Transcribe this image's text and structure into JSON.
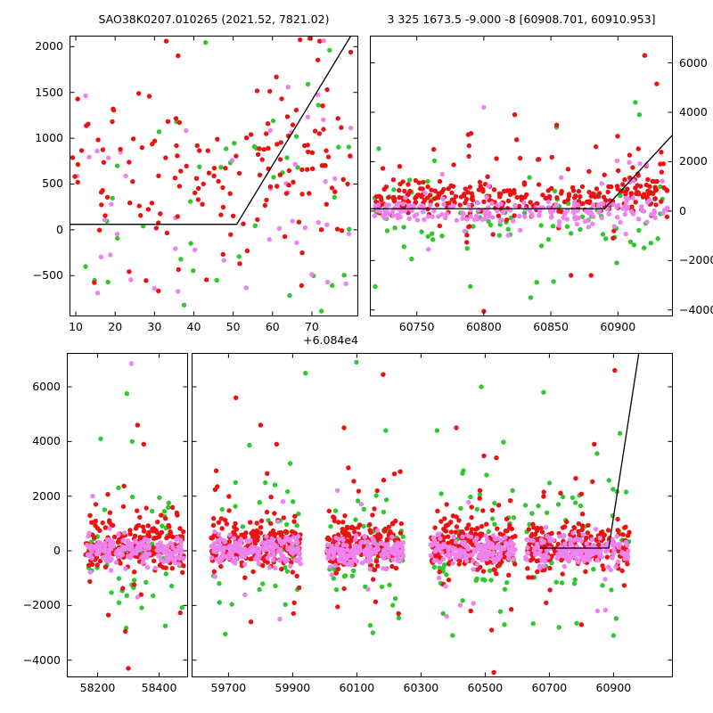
{
  "titles": {
    "left": "SAO38K0207.010265 (2021.52, 7821.02)",
    "right": "3 325 1673.5 -9.000 -8 [60908.701, 60910.953]"
  },
  "colors": {
    "red": "#ee1111",
    "green": "#2fc92f",
    "violet": "#ee82ee",
    "line": "#000000",
    "axis": "#000000",
    "background": "#ffffff"
  },
  "marker": {
    "radius": 2.7
  },
  "chart_data": [
    {
      "id": "ax1",
      "type": "scatter",
      "title": "SAO38K0207.010265 (2021.52, 7821.02)",
      "xlim": [
        8.4,
        81.8
      ],
      "ylim": [
        -945,
        2120
      ],
      "x_offset": "+6.084e4",
      "xticks": {
        "values": [
          10,
          20,
          30,
          40,
          50,
          60,
          70
        ],
        "labels": [
          "10",
          "20",
          "30",
          "40",
          "50",
          "60",
          "70"
        ]
      },
      "yticks": {
        "side": "left",
        "values": [
          -500,
          0,
          500,
          1000,
          1500,
          2000
        ],
        "labels": [
          "−500",
          "0",
          "500",
          "1000",
          "1500",
          "2000"
        ]
      },
      "line": [
        [
          8.4,
          60
        ],
        [
          50.9,
          60
        ],
        [
          81.8,
          2251
        ]
      ],
      "clusters": [
        {
          "seed": 11,
          "color": "green",
          "n": 34,
          "x": [
            9,
            81
          ],
          "mean": 150,
          "sd": 800,
          "clip": [
            -900,
            2060
          ]
        },
        {
          "seed": 12,
          "color": "green",
          "n": 8,
          "x": [
            60,
            81
          ],
          "mean": 900,
          "sd": 600,
          "clip": [
            -100,
            1900
          ]
        },
        {
          "seed": 13,
          "color": "violet",
          "n": 34,
          "x": [
            9,
            81
          ],
          "mean": 50,
          "sd": 550,
          "clip": [
            -900,
            1700
          ]
        },
        {
          "seed": 14,
          "color": "violet",
          "n": 14,
          "x": [
            58,
            81
          ],
          "mean": 700,
          "sd": 520,
          "clip": [
            -200,
            1800
          ]
        },
        {
          "seed": 15,
          "color": "red",
          "n": 95,
          "x": [
            9,
            81
          ],
          "mean": 680,
          "sd": 380,
          "clip": [
            -100,
            2080
          ]
        },
        {
          "seed": 16,
          "color": "red",
          "n": 42,
          "x": [
            9,
            78
          ],
          "mean": 50,
          "sd": 520,
          "clip": [
            -900,
            2080
          ]
        },
        {
          "seed": 17,
          "color": "red",
          "n": 14,
          "x": [
            55,
            81
          ],
          "mean": 1450,
          "sd": 420,
          "clip": [
            400,
            2080
          ]
        }
      ],
      "outliers": [
        [
          "red",
          67,
          2075
        ],
        [
          "red",
          69.5,
          2090
        ],
        [
          "red",
          72,
          2060
        ],
        [
          "violet",
          73,
          2065
        ],
        [
          "green",
          74.5,
          1960
        ],
        [
          "green",
          43,
          2045
        ],
        [
          "red",
          33,
          2060
        ],
        [
          "red",
          36,
          1900
        ]
      ]
    },
    {
      "id": "ax2",
      "type": "scatter",
      "title": "3 325 1673.5 -9.000 -8 [60908.701, 60910.953]",
      "xlim": [
        60715,
        60941
      ],
      "ylim": [
        -4260,
        7100
      ],
      "xticks": {
        "values": [
          60750,
          60800,
          60850,
          60900
        ],
        "labels": [
          "60750",
          "60800",
          "60850",
          "60900"
        ]
      },
      "yticks": {
        "side": "right",
        "values": [
          -4000,
          -2000,
          0,
          2000,
          4000,
          6000
        ],
        "labels": [
          "−4000",
          "−2000",
          "0",
          "2000",
          "4000",
          "6000"
        ]
      },
      "line": [
        [
          60715,
          100
        ],
        [
          60890,
          100
        ],
        [
          60941,
          3100
        ]
      ],
      "clusters": [
        {
          "seed": 21,
          "color": "green",
          "n": 65,
          "x": [
            60718,
            60938
          ],
          "mean": -150,
          "sd": 800,
          "clip": [
            -2400,
            2000
          ]
        },
        {
          "seed": 22,
          "color": "green",
          "n": 18,
          "x": [
            60718,
            60938
          ],
          "mean": 0,
          "sd": 1800,
          "clip": [
            -3600,
            3700
          ]
        },
        {
          "seed": 23,
          "color": "red",
          "n": 240,
          "x": [
            60718,
            60938
          ],
          "mean": 520,
          "sd": 330,
          "clip": [
            -350,
            1600
          ]
        },
        {
          "seed": 24,
          "color": "red",
          "n": 45,
          "x": [
            60718,
            60938
          ],
          "mean": 800,
          "sd": 1200,
          "clip": [
            -1500,
            3900
          ]
        },
        {
          "seed": 25,
          "color": "red",
          "n": 11,
          "x": [
            60786,
            60791
          ],
          "dist": "uniform",
          "clip": [
            -1500,
            3500
          ]
        },
        {
          "seed": 26,
          "color": "violet",
          "n": 185,
          "x": [
            60718,
            60938
          ],
          "mean": -30,
          "sd": 260,
          "clip": [
            -800,
            800
          ]
        },
        {
          "seed": 27,
          "color": "violet",
          "n": 12,
          "x": [
            60718,
            60930
          ],
          "mean": 0,
          "sd": 1100,
          "clip": [
            -2600,
            2600
          ]
        },
        {
          "seed": 28,
          "color": "red",
          "n": 16,
          "x": [
            60898,
            60938
          ],
          "mean": 1500,
          "sd": 900,
          "clip": [
            0,
            3300
          ]
        },
        {
          "seed": 29,
          "color": "violet",
          "n": 10,
          "x": [
            60898,
            60936
          ],
          "mean": 1200,
          "sd": 900,
          "clip": [
            -200,
            2600
          ]
        }
      ],
      "outliers": [
        [
          "violet",
          60800,
          4200
        ],
        [
          "red",
          60823,
          3900
        ],
        [
          "red",
          60920,
          6300
        ],
        [
          "red",
          60929,
          5150
        ],
        [
          "green",
          60913,
          4400
        ],
        [
          "green",
          60916,
          3900
        ],
        [
          "green",
          60835,
          -3500
        ],
        [
          "red",
          60800,
          -4050
        ],
        [
          "green",
          60852,
          -2850
        ],
        [
          "red",
          60865,
          -2600
        ],
        [
          "red",
          60880,
          -2600
        ],
        [
          "green",
          60790,
          -3050
        ]
      ]
    },
    {
      "id": "ax3a",
      "type": "scatter",
      "xlim": [
        58100,
        58494
      ],
      "ylim": [
        -4630,
        7240
      ],
      "xticks": {
        "values": [
          58200,
          58400
        ],
        "labels": [
          "58200",
          "58400"
        ]
      },
      "yticks": {
        "side": "left",
        "values": [
          -4000,
          -2000,
          0,
          2000,
          4000,
          6000
        ],
        "labels": [
          "−4000",
          "−2000",
          "0",
          "2000",
          "4000",
          "6000"
        ]
      },
      "clusters": [
        {
          "seed": 31,
          "color": "green",
          "n": 52,
          "x": [
            58165,
            58480
          ],
          "mean": 250,
          "sd": 1300,
          "clip": [
            -3100,
            4700
          ]
        },
        {
          "seed": 32,
          "color": "red",
          "n": 185,
          "x": [
            58160,
            58480
          ],
          "mean": 180,
          "sd": 420,
          "clip": [
            -1100,
            1500
          ]
        },
        {
          "seed": 33,
          "color": "red",
          "n": 30,
          "x": [
            58170,
            58470
          ],
          "mean": 600,
          "sd": 1300,
          "clip": [
            -2700,
            3300
          ]
        },
        {
          "seed": 34,
          "color": "violet",
          "n": 165,
          "x": [
            58165,
            58480
          ],
          "mean": 0,
          "sd": 270,
          "clip": [
            -850,
            950
          ]
        },
        {
          "seed": 35,
          "color": "violet",
          "n": 8,
          "x": [
            58180,
            58460
          ],
          "mean": 0,
          "sd": 1300,
          "clip": [
            -2700,
            2700
          ]
        }
      ],
      "outliers": [
        [
          "violet",
          58310,
          6850
        ],
        [
          "green",
          58295,
          5750
        ],
        [
          "red",
          58330,
          4600
        ],
        [
          "red",
          58350,
          3900
        ],
        [
          "red",
          58235,
          -2350
        ],
        [
          "red",
          58290,
          -2950
        ],
        [
          "green",
          58420,
          -2750
        ],
        [
          "red",
          58300,
          -4300
        ],
        [
          "violet",
          58330,
          -1700
        ],
        [
          "green",
          58210,
          4100
        ]
      ]
    },
    {
      "id": "ax3b",
      "type": "scatter",
      "xlim": [
        59585,
        61085
      ],
      "ylim": [
        -4630,
        7240
      ],
      "xticks": {
        "values": [
          59700,
          59900,
          60100,
          60300,
          60500,
          60700,
          60900
        ],
        "labels": [
          "59700",
          "59900",
          "60100",
          "60300",
          "60500",
          "60700",
          "60900"
        ]
      },
      "yticks": {
        "side": "none",
        "values": [
          -4000,
          -2000,
          0,
          2000,
          4000,
          6000
        ],
        "labels": [
          "",
          "",
          "",
          "",
          "",
          ""
        ]
      },
      "line": [
        [
          60670,
          100
        ],
        [
          60885,
          100
        ],
        [
          60985,
          7700
        ]
      ],
      "clusters": [
        {
          "seed": 41,
          "color": "green",
          "n": 50,
          "x": [
            59645,
            59925
          ],
          "mean": 250,
          "sd": 1300,
          "clip": [
            -3100,
            4200
          ]
        },
        {
          "seed": 42,
          "color": "red",
          "n": 185,
          "x": [
            59645,
            59925
          ],
          "mean": 200,
          "sd": 420,
          "clip": [
            -1100,
            1600
          ]
        },
        {
          "seed": 43,
          "color": "red",
          "n": 28,
          "x": [
            59650,
            59920
          ],
          "mean": 700,
          "sd": 1300,
          "clip": [
            -2700,
            3600
          ]
        },
        {
          "seed": 44,
          "color": "violet",
          "n": 165,
          "x": [
            59645,
            59925
          ],
          "mean": 0,
          "sd": 270,
          "clip": [
            -850,
            950
          ]
        },
        {
          "seed": 45,
          "color": "violet",
          "n": 7,
          "x": [
            59650,
            59920
          ],
          "mean": 0,
          "sd": 1300,
          "clip": [
            -2600,
            2600
          ]
        },
        {
          "seed": 46,
          "color": "green",
          "n": 50,
          "x": [
            60005,
            60245
          ],
          "mean": 250,
          "sd": 1300,
          "clip": [
            -3100,
            4200
          ]
        },
        {
          "seed": 47,
          "color": "red",
          "n": 185,
          "x": [
            60005,
            60245
          ],
          "mean": 200,
          "sd": 420,
          "clip": [
            -1100,
            1600
          ]
        },
        {
          "seed": 48,
          "color": "red",
          "n": 28,
          "x": [
            60010,
            60240
          ],
          "mean": 700,
          "sd": 1300,
          "clip": [
            -2700,
            3600
          ]
        },
        {
          "seed": 49,
          "color": "violet",
          "n": 165,
          "x": [
            60005,
            60245
          ],
          "mean": 0,
          "sd": 270,
          "clip": [
            -850,
            950
          ]
        },
        {
          "seed": 50,
          "color": "violet",
          "n": 7,
          "x": [
            60010,
            60240
          ],
          "mean": 0,
          "sd": 1300,
          "clip": [
            -2600,
            2600
          ]
        },
        {
          "seed": 51,
          "color": "green",
          "n": 50,
          "x": [
            60330,
            60595
          ],
          "mean": 250,
          "sd": 1300,
          "clip": [
            -3100,
            4200
          ]
        },
        {
          "seed": 52,
          "color": "red",
          "n": 185,
          "x": [
            60330,
            60595
          ],
          "mean": 200,
          "sd": 420,
          "clip": [
            -1100,
            1600
          ]
        },
        {
          "seed": 53,
          "color": "red",
          "n": 28,
          "x": [
            60335,
            60590
          ],
          "mean": 700,
          "sd": 1300,
          "clip": [
            -2700,
            3600
          ]
        },
        {
          "seed": 54,
          "color": "violet",
          "n": 165,
          "x": [
            60330,
            60595
          ],
          "mean": 0,
          "sd": 270,
          "clip": [
            -850,
            950
          ]
        },
        {
          "seed": 55,
          "color": "violet",
          "n": 7,
          "x": [
            60335,
            60590
          ],
          "mean": 0,
          "sd": 1300,
          "clip": [
            -2600,
            2600
          ]
        },
        {
          "seed": 56,
          "color": "green",
          "n": 50,
          "x": [
            60625,
            60950
          ],
          "mean": 250,
          "sd": 1300,
          "clip": [
            -3100,
            4200
          ]
        },
        {
          "seed": 57,
          "color": "red",
          "n": 185,
          "x": [
            60625,
            60950
          ],
          "mean": 200,
          "sd": 420,
          "clip": [
            -1100,
            1600
          ]
        },
        {
          "seed": 58,
          "color": "red",
          "n": 28,
          "x": [
            60630,
            60945
          ],
          "mean": 700,
          "sd": 1300,
          "clip": [
            -2700,
            3600
          ]
        },
        {
          "seed": 59,
          "color": "violet",
          "n": 165,
          "x": [
            60625,
            60950
          ],
          "mean": 0,
          "sd": 270,
          "clip": [
            -850,
            950
          ]
        },
        {
          "seed": 60,
          "color": "violet",
          "n": 7,
          "x": [
            60630,
            60945
          ],
          "mean": 0,
          "sd": 1300,
          "clip": [
            -2600,
            2600
          ]
        }
      ],
      "outliers": [
        [
          "red",
          59723,
          5600
        ],
        [
          "green",
          59940,
          6500
        ],
        [
          "red",
          59800,
          4600
        ],
        [
          "red",
          59850,
          3900
        ],
        [
          "green",
          59690,
          -3050
        ],
        [
          "red",
          59770,
          -2600
        ],
        [
          "violet",
          59860,
          -2500
        ],
        [
          "red",
          59905,
          -1900
        ],
        [
          "red",
          60182,
          6450
        ],
        [
          "green",
          60099,
          6900
        ],
        [
          "red",
          60060,
          4500
        ],
        [
          "green",
          60190,
          4400
        ],
        [
          "red",
          60230,
          -2300
        ],
        [
          "green",
          60150,
          -3000
        ],
        [
          "red",
          60040,
          -2050
        ],
        [
          "green",
          60488,
          6000
        ],
        [
          "red",
          60410,
          4500
        ],
        [
          "green",
          60350,
          4400
        ],
        [
          "red",
          60520,
          -2900
        ],
        [
          "green",
          60560,
          -2700
        ],
        [
          "red",
          60455,
          -2200
        ],
        [
          "red",
          60527,
          -4450
        ],
        [
          "violet",
          60380,
          -2400
        ],
        [
          "red",
          60904,
          6600
        ],
        [
          "green",
          60682,
          5800
        ],
        [
          "green",
          60920,
          4300
        ],
        [
          "red",
          60840,
          3900
        ],
        [
          "green",
          60730,
          -2800
        ],
        [
          "red",
          60800,
          -2700
        ],
        [
          "violet",
          60850,
          -2200
        ],
        [
          "green",
          60900,
          -3100
        ],
        [
          "red",
          60690,
          -1900
        ]
      ]
    }
  ]
}
